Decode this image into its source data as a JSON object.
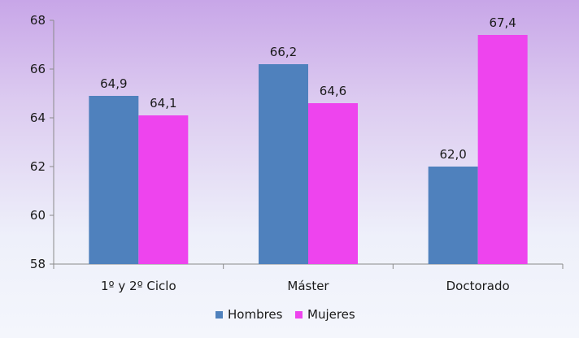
{
  "chart_data": {
    "type": "bar",
    "categories": [
      "1º y 2º Ciclo",
      "Máster",
      "Doctorado"
    ],
    "series": [
      {
        "name": "Hombres",
        "values": [
          64.9,
          66.2,
          62.0
        ],
        "labels": [
          "64,9",
          "66,2",
          "62,0"
        ],
        "color": "#4f81bd"
      },
      {
        "name": "Mujeres",
        "values": [
          64.1,
          64.6,
          67.4
        ],
        "labels": [
          "64,1",
          "64,6",
          "67,4"
        ],
        "color": "#ee44ee"
      }
    ],
    "ylim": [
      58,
      68
    ],
    "yticks": [
      58,
      60,
      62,
      64,
      66,
      68
    ],
    "grid": false,
    "legend_position": "bottom"
  }
}
